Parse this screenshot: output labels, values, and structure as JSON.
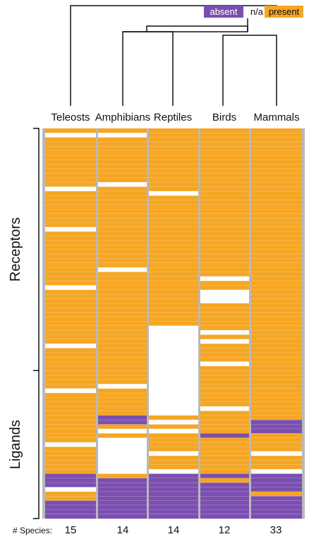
{
  "legend": {
    "absent": "absent",
    "na": "n/a",
    "present": "present"
  },
  "colors": {
    "present": "#F5A623",
    "absent": "#7B4FB0",
    "na": "#FFFFFF",
    "divider": "#B9B9B9",
    "row_line": "#FFFFFF"
  },
  "chart_data": {
    "type": "heatmap",
    "value_key": {
      "P": "present",
      "A": "absent",
      "N": "n/a"
    },
    "columns": [
      "Teleosts",
      "Amphibians",
      "Reptiles",
      "Birds",
      "Mammals"
    ],
    "species_label": "# Species:",
    "species_counts": [
      15,
      14,
      14,
      12,
      33
    ],
    "row_groups": [
      {
        "label": "Receptors",
        "row_count": 54
      },
      {
        "label": "Ligands",
        "row_count": 33
      }
    ],
    "matrix": [
      [
        "P",
        "P",
        "P",
        "P",
        "P"
      ],
      [
        "N",
        "N",
        "P",
        "P",
        "P"
      ],
      [
        "P",
        "P",
        "P",
        "P",
        "P"
      ],
      [
        "P",
        "P",
        "P",
        "P",
        "P"
      ],
      [
        "P",
        "P",
        "P",
        "P",
        "P"
      ],
      [
        "P",
        "P",
        "P",
        "P",
        "P"
      ],
      [
        "P",
        "P",
        "P",
        "P",
        "P"
      ],
      [
        "P",
        "P",
        "P",
        "P",
        "P"
      ],
      [
        "P",
        "P",
        "P",
        "P",
        "P"
      ],
      [
        "P",
        "P",
        "P",
        "P",
        "P"
      ],
      [
        "P",
        "P",
        "P",
        "P",
        "P"
      ],
      [
        "P",
        "P",
        "P",
        "P",
        "P"
      ],
      [
        "P",
        "N",
        "P",
        "P",
        "P"
      ],
      [
        "N",
        "P",
        "P",
        "P",
        "P"
      ],
      [
        "P",
        "P",
        "N",
        "P",
        "P"
      ],
      [
        "P",
        "P",
        "P",
        "P",
        "P"
      ],
      [
        "P",
        "P",
        "P",
        "P",
        "P"
      ],
      [
        "P",
        "P",
        "P",
        "P",
        "P"
      ],
      [
        "P",
        "P",
        "P",
        "P",
        "P"
      ],
      [
        "P",
        "P",
        "P",
        "P",
        "P"
      ],
      [
        "P",
        "P",
        "P",
        "P",
        "P"
      ],
      [
        "P",
        "P",
        "P",
        "P",
        "P"
      ],
      [
        "N",
        "P",
        "P",
        "P",
        "P"
      ],
      [
        "P",
        "P",
        "P",
        "P",
        "P"
      ],
      [
        "P",
        "P",
        "P",
        "P",
        "P"
      ],
      [
        "P",
        "P",
        "P",
        "P",
        "P"
      ],
      [
        "P",
        "P",
        "P",
        "P",
        "P"
      ],
      [
        "P",
        "P",
        "P",
        "P",
        "P"
      ],
      [
        "P",
        "P",
        "P",
        "P",
        "P"
      ],
      [
        "P",
        "P",
        "P",
        "P",
        "P"
      ],
      [
        "P",
        "P",
        "P",
        "P",
        "P"
      ],
      [
        "P",
        "N",
        "P",
        "P",
        "P"
      ],
      [
        "P",
        "P",
        "P",
        "P",
        "P"
      ],
      [
        "P",
        "P",
        "P",
        "N",
        "P"
      ],
      [
        "P",
        "P",
        "P",
        "P",
        "P"
      ],
      [
        "N",
        "P",
        "P",
        "P",
        "P"
      ],
      [
        "P",
        "P",
        "P",
        "N",
        "P"
      ],
      [
        "P",
        "P",
        "P",
        "N",
        "P"
      ],
      [
        "P",
        "P",
        "P",
        "N",
        "P"
      ],
      [
        "P",
        "P",
        "P",
        "P",
        "P"
      ],
      [
        "P",
        "P",
        "P",
        "P",
        "P"
      ],
      [
        "P",
        "P",
        "P",
        "P",
        "P"
      ],
      [
        "P",
        "P",
        "P",
        "P",
        "P"
      ],
      [
        "P",
        "P",
        "P",
        "P",
        "P"
      ],
      [
        "P",
        "P",
        "N",
        "P",
        "P"
      ],
      [
        "P",
        "P",
        "N",
        "N",
        "P"
      ],
      [
        "P",
        "P",
        "N",
        "P",
        "P"
      ],
      [
        "P",
        "P",
        "N",
        "N",
        "P"
      ],
      [
        "N",
        "P",
        "N",
        "P",
        "P"
      ],
      [
        "P",
        "P",
        "N",
        "P",
        "P"
      ],
      [
        "P",
        "P",
        "N",
        "P",
        "P"
      ],
      [
        "P",
        "P",
        "N",
        "P",
        "P"
      ],
      [
        "P",
        "P",
        "N",
        "N",
        "P"
      ],
      [
        "P",
        "P",
        "N",
        "P",
        "P"
      ],
      [
        "P",
        "P",
        "N",
        "P",
        "P"
      ],
      [
        "P",
        "P",
        "N",
        "P",
        "P"
      ],
      [
        "P",
        "P",
        "N",
        "P",
        "P"
      ],
      [
        "P",
        "N",
        "N",
        "P",
        "P"
      ],
      [
        "N",
        "P",
        "N",
        "P",
        "P"
      ],
      [
        "P",
        "P",
        "N",
        "P",
        "P"
      ],
      [
        "P",
        "P",
        "N",
        "P",
        "P"
      ],
      [
        "P",
        "P",
        "N",
        "P",
        "P"
      ],
      [
        "P",
        "P",
        "N",
        "N",
        "P"
      ],
      [
        "P",
        "P",
        "N",
        "P",
        "P"
      ],
      [
        "P",
        "A",
        "P",
        "P",
        "P"
      ],
      [
        "P",
        "A",
        "N",
        "P",
        "A"
      ],
      [
        "P",
        "P",
        "P",
        "P",
        "A"
      ],
      [
        "P",
        "N",
        "N",
        "P",
        "A"
      ],
      [
        "P",
        "P",
        "P",
        "A",
        "P"
      ],
      [
        "P",
        "N",
        "P",
        "P",
        "P"
      ],
      [
        "N",
        "N",
        "P",
        "P",
        "P"
      ],
      [
        "P",
        "N",
        "P",
        "P",
        "P"
      ],
      [
        "P",
        "N",
        "N",
        "P",
        "N"
      ],
      [
        "P",
        "N",
        "P",
        "P",
        "P"
      ],
      [
        "P",
        "N",
        "P",
        "P",
        "P"
      ],
      [
        "P",
        "N",
        "P",
        "P",
        "P"
      ],
      [
        "P",
        "N",
        "N",
        "P",
        "N"
      ],
      [
        "A",
        "P",
        "A",
        "A",
        "A"
      ],
      [
        "A",
        "A",
        "A",
        "P",
        "A"
      ],
      [
        "A",
        "A",
        "A",
        "A",
        "A"
      ],
      [
        "N",
        "A",
        "A",
        "A",
        "A"
      ],
      [
        "P",
        "A",
        "A",
        "A",
        "P"
      ],
      [
        "P",
        "A",
        "A",
        "A",
        "A"
      ],
      [
        "A",
        "A",
        "A",
        "A",
        "A"
      ],
      [
        "A",
        "A",
        "A",
        "A",
        "A"
      ],
      [
        "A",
        "A",
        "A",
        "A",
        "A"
      ],
      [
        "A",
        "A",
        "A",
        "A",
        "A"
      ]
    ]
  }
}
